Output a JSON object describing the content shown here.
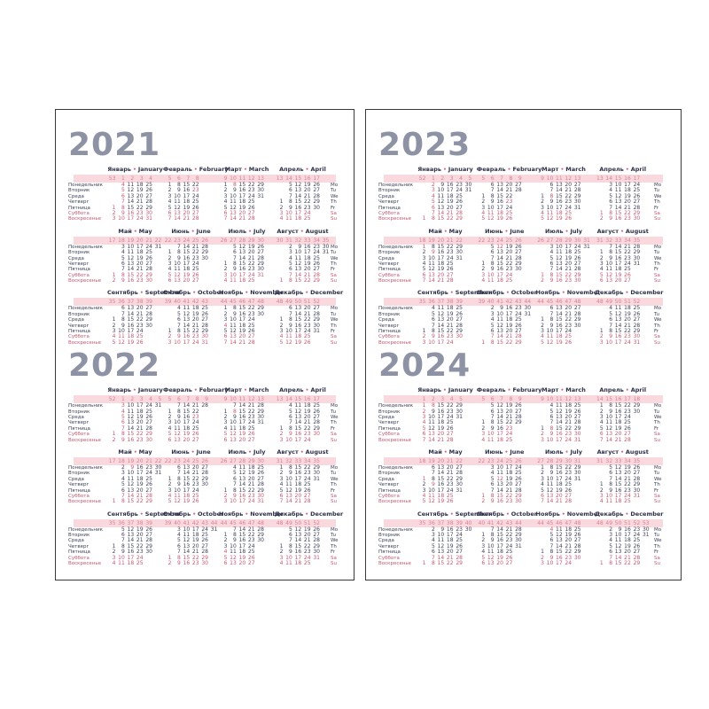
{
  "colors": {
    "frame": "#39393b",
    "year_title": "#8d92a4",
    "month_header": "#2c3048",
    "bullet": "#d06a82",
    "band_bg": "#f9d9de",
    "week_number": "#d97f93",
    "date_text": "#3c4157",
    "weekend_text": "#c6566f"
  },
  "weekday_labels_ru": [
    "Понедельник",
    "Вторник",
    "Среда",
    "Четверг",
    "Пятница",
    "Суббота",
    "Воскресенье"
  ],
  "weekday_abbr_en": [
    "Mo",
    "Tu",
    "We",
    "Th",
    "Fr",
    "Sa",
    "Su"
  ],
  "month_names": [
    {
      "ru": "Январь",
      "en": "January"
    },
    {
      "ru": "Февраль",
      "en": "February"
    },
    {
      "ru": "Март",
      "en": "March"
    },
    {
      "ru": "Апрель",
      "en": "April"
    },
    {
      "ru": "Май",
      "en": "May"
    },
    {
      "ru": "Июнь",
      "en": "June"
    },
    {
      "ru": "Июль",
      "en": "July"
    },
    {
      "ru": "Август",
      "en": "August"
    },
    {
      "ru": "Сентябрь",
      "en": "September"
    },
    {
      "ru": "Октябрь",
      "en": "October"
    },
    {
      "ru": "Ноябрь",
      "en": "November"
    },
    {
      "ru": "Декабрь",
      "en": "December"
    }
  ],
  "holidays": {
    "1": [
      1,
      2,
      3,
      4,
      5,
      6,
      7,
      8
    ],
    "2": [
      23
    ],
    "3": [
      8
    ],
    "5": [
      1,
      9
    ],
    "6": [
      12
    ],
    "11": [
      4
    ]
  },
  "pages": [
    {
      "side": "left",
      "years": [
        {
          "label": "2021",
          "months": [
            {
              "weeks": [
                53,
                1,
                2,
                3,
                4
              ],
              "fd": 4,
              "nd": 31
            },
            {
              "weeks": [
                5,
                6,
                7,
                8
              ],
              "fd": 0,
              "nd": 28
            },
            {
              "weeks": [
                9,
                10,
                11,
                12,
                13
              ],
              "fd": 0,
              "nd": 31
            },
            {
              "weeks": [
                13,
                14,
                15,
                16,
                17
              ],
              "fd": 3,
              "nd": 30
            },
            {
              "weeks": [
                17,
                18,
                19,
                20,
                21,
                22
              ],
              "fd": 5,
              "nd": 31
            },
            {
              "weeks": [
                22,
                23,
                24,
                25,
                26
              ],
              "fd": 1,
              "nd": 30
            },
            {
              "weeks": [
                26,
                27,
                28,
                29,
                30
              ],
              "fd": 3,
              "nd": 31
            },
            {
              "weeks": [
                30,
                31,
                32,
                33,
                34,
                35
              ],
              "fd": 6,
              "nd": 31
            },
            {
              "weeks": [
                35,
                36,
                37,
                38,
                39
              ],
              "fd": 2,
              "nd": 30
            },
            {
              "weeks": [
                39,
                40,
                41,
                42,
                43
              ],
              "fd": 4,
              "nd": 31
            },
            {
              "weeks": [
                44,
                45,
                46,
                47,
                48
              ],
              "fd": 0,
              "nd": 30
            },
            {
              "weeks": [
                48,
                49,
                50,
                51,
                52
              ],
              "fd": 2,
              "nd": 31
            }
          ]
        },
        {
          "label": "2022",
          "months": [
            {
              "weeks": [
                52,
                1,
                2,
                3,
                4,
                5
              ],
              "fd": 5,
              "nd": 31
            },
            {
              "weeks": [
                5,
                6,
                7,
                8,
                9
              ],
              "fd": 1,
              "nd": 28
            },
            {
              "weeks": [
                9,
                10,
                11,
                12,
                13
              ],
              "fd": 1,
              "nd": 31
            },
            {
              "weeks": [
                13,
                14,
                15,
                16,
                17
              ],
              "fd": 4,
              "nd": 30
            },
            {
              "weeks": [
                17,
                18,
                19,
                20,
                21,
                22
              ],
              "fd": 6,
              "nd": 31
            },
            {
              "weeks": [
                22,
                23,
                24,
                25,
                26
              ],
              "fd": 2,
              "nd": 30
            },
            {
              "weeks": [
                26,
                27,
                28,
                29,
                30
              ],
              "fd": 4,
              "nd": 31
            },
            {
              "weeks": [
                31,
                32,
                33,
                34,
                35
              ],
              "fd": 0,
              "nd": 31
            },
            {
              "weeks": [
                35,
                36,
                37,
                38,
                39
              ],
              "fd": 3,
              "nd": 30
            },
            {
              "weeks": [
                39,
                40,
                41,
                42,
                43,
                44
              ],
              "fd": 5,
              "nd": 31
            },
            {
              "weeks": [
                44,
                45,
                46,
                47,
                48
              ],
              "fd": 1,
              "nd": 30
            },
            {
              "weeks": [
                48,
                49,
                50,
                51,
                52
              ],
              "fd": 3,
              "nd": 31
            }
          ]
        }
      ]
    },
    {
      "side": "right",
      "years": [
        {
          "label": "2023",
          "months": [
            {
              "weeks": [
                52,
                1,
                2,
                3,
                4,
                5
              ],
              "fd": 6,
              "nd": 31
            },
            {
              "weeks": [
                5,
                6,
                7,
                8,
                9
              ],
              "fd": 2,
              "nd": 28
            },
            {
              "weeks": [
                9,
                10,
                11,
                12,
                13
              ],
              "fd": 2,
              "nd": 31
            },
            {
              "weeks": [
                13,
                14,
                15,
                16,
                17
              ],
              "fd": 5,
              "nd": 30
            },
            {
              "weeks": [
                18,
                19,
                20,
                21,
                22
              ],
              "fd": 0,
              "nd": 31
            },
            {
              "weeks": [
                22,
                23,
                24,
                25,
                26
              ],
              "fd": 3,
              "nd": 30
            },
            {
              "weeks": [
                26,
                27,
                28,
                29,
                30,
                31
              ],
              "fd": 5,
              "nd": 31
            },
            {
              "weeks": [
                31,
                32,
                33,
                34,
                35
              ],
              "fd": 1,
              "nd": 31
            },
            {
              "weeks": [
                35,
                36,
                37,
                38,
                39
              ],
              "fd": 4,
              "nd": 30
            },
            {
              "weeks": [
                39,
                40,
                41,
                42,
                43,
                44
              ],
              "fd": 6,
              "nd": 31
            },
            {
              "weeks": [
                44,
                45,
                46,
                47,
                48
              ],
              "fd": 2,
              "nd": 30
            },
            {
              "weeks": [
                48,
                49,
                50,
                51,
                52
              ],
              "fd": 4,
              "nd": 31
            }
          ]
        },
        {
          "label": "2024",
          "months": [
            {
              "weeks": [
                1,
                2,
                3,
                4,
                5
              ],
              "fd": 0,
              "nd": 31
            },
            {
              "weeks": [
                5,
                6,
                7,
                8,
                9
              ],
              "fd": 3,
              "nd": 29
            },
            {
              "weeks": [
                9,
                10,
                11,
                12,
                13
              ],
              "fd": 4,
              "nd": 31
            },
            {
              "weeks": [
                14,
                15,
                16,
                17,
                18
              ],
              "fd": 0,
              "nd": 30
            },
            {
              "weeks": [
                18,
                19,
                20,
                21,
                22
              ],
              "fd": 2,
              "nd": 31
            },
            {
              "weeks": [
                22,
                23,
                24,
                25,
                26
              ],
              "fd": 5,
              "nd": 30
            },
            {
              "weeks": [
                27,
                28,
                29,
                30,
                31
              ],
              "fd": 0,
              "nd": 31
            },
            {
              "weeks": [
                31,
                32,
                33,
                34,
                35
              ],
              "fd": 3,
              "nd": 31
            },
            {
              "weeks": [
                35,
                36,
                37,
                38,
                39,
                40
              ],
              "fd": 6,
              "nd": 30
            },
            {
              "weeks": [
                40,
                41,
                42,
                43,
                44
              ],
              "fd": 1,
              "nd": 31
            },
            {
              "weeks": [
                44,
                45,
                46,
                47,
                48
              ],
              "fd": 4,
              "nd": 30
            },
            {
              "weeks": [
                48,
                49,
                50,
                51,
                52,
                53
              ],
              "fd": 6,
              "nd": 31
            }
          ]
        }
      ]
    }
  ]
}
